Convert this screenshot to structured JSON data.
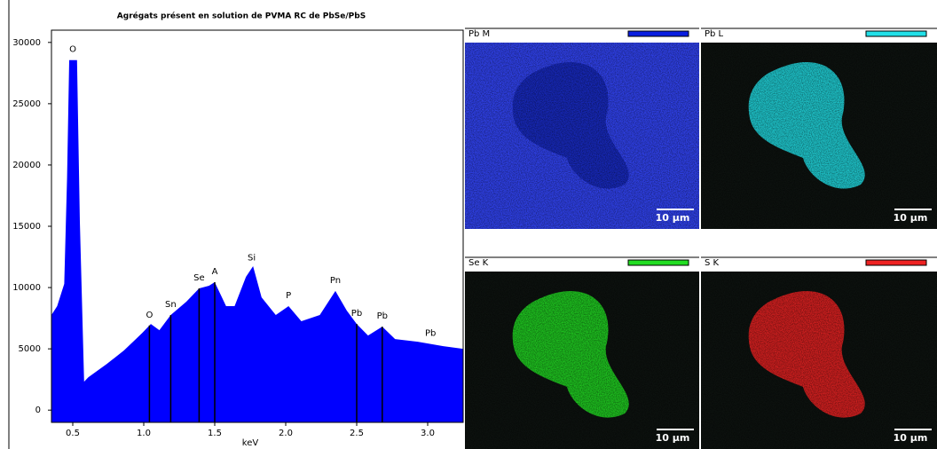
{
  "chart_data": {
    "type": "area",
    "title": "Agrégats présent en solution de PVMA RC de PbSe/PbS",
    "x": [
      0.35,
      0.39,
      0.44,
      0.46,
      0.475,
      0.53,
      0.55,
      0.58,
      0.61,
      0.74,
      0.86,
      0.99,
      1.05,
      1.11,
      1.19,
      1.3,
      1.39,
      1.46,
      1.5,
      1.58,
      1.64,
      1.72,
      1.77,
      1.83,
      1.93,
      2.02,
      2.11,
      2.24,
      2.35,
      2.43,
      2.5,
      2.58,
      2.68,
      2.77,
      2.93,
      3.11,
      3.25
    ],
    "values": [
      7760,
      8480,
      10300,
      19000,
      28560,
      28560,
      15370,
      2320,
      2680,
      3770,
      4860,
      6300,
      7030,
      6520,
      7760,
      8850,
      9930,
      10150,
      10440,
      8480,
      8480,
      10870,
      11740,
      9200,
      7760,
      8480,
      7250,
      7760,
      9720,
      8120,
      7030,
      6090,
      6810,
      5800,
      5580,
      5220,
      5000
    ],
    "color": "#0000ff",
    "xlim": [
      0.35,
      3.25
    ],
    "ylim": [
      -1000,
      31000
    ],
    "xticks": [
      0.5,
      {
        "value": 1,
        "label": "1.0"
      },
      1.5,
      {
        "value": 2,
        "label": "2.0"
      },
      2.5,
      {
        "value": 3,
        "label": "3.0"
      }
    ],
    "yticks": [
      0,
      5000,
      10000,
      15000,
      20000,
      25000,
      30000
    ],
    "xlabel": "keV",
    "annotations": [
      {
        "text": "O",
        "x": 0.5,
        "line": false
      },
      {
        "text": "O",
        "x": 1.04,
        "line": true
      },
      {
        "text": "Sn",
        "x": 1.19,
        "line": true
      },
      {
        "text": "Se",
        "x": 1.39,
        "line": true
      },
      {
        "text": "A",
        "x": 1.5,
        "line": true
      },
      {
        "text": "Si",
        "x": 1.76,
        "line": false
      },
      {
        "text": "P",
        "x": 2.02,
        "line": false
      },
      {
        "text": "Pn",
        "x": 2.35,
        "line": false
      },
      {
        "text": "Pb",
        "x": 2.5,
        "line": true
      },
      {
        "text": "Pb",
        "x": 2.68,
        "line": true
      },
      {
        "text": "Pb",
        "x": 3.02,
        "line": false
      }
    ]
  },
  "maps": [
    {
      "label": "Pb M",
      "color": "#0a1ee0",
      "scale": "10 µm"
    },
    {
      "label": "Pb L",
      "color": "#22e0e8",
      "scale": "10 µm"
    },
    {
      "label": "Se K",
      "color": "#22dd22",
      "scale": "10 µm"
    },
    {
      "label": "S K",
      "color": "#ee2222",
      "scale": "10 µm"
    }
  ]
}
